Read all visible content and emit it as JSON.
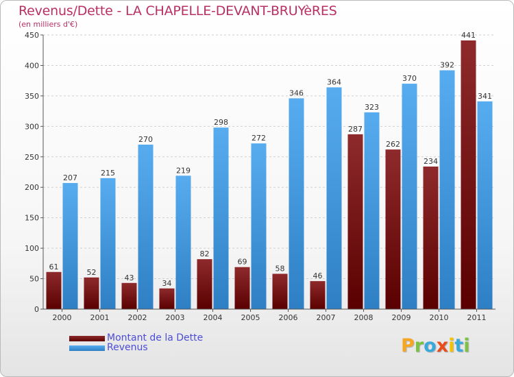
{
  "chart_data": {
    "type": "bar",
    "title": "Revenus/Dette - LA CHAPELLE-DEVANT-BRUYèRES",
    "subtitle": "(en milliers d'€)",
    "categories": [
      "2000",
      "2001",
      "2002",
      "2003",
      "2004",
      "2005",
      "2006",
      "2007",
      "2008",
      "2009",
      "2010",
      "2011"
    ],
    "series": [
      {
        "name": "Montant de la Dette",
        "color": "#7a0f12",
        "values": [
          61,
          52,
          43,
          34,
          82,
          69,
          58,
          46,
          287,
          262,
          234,
          441
        ]
      },
      {
        "name": "Revenus",
        "color": "#3d97dd",
        "values": [
          207,
          215,
          270,
          219,
          298,
          272,
          346,
          364,
          323,
          370,
          392,
          341
        ]
      }
    ],
    "ylim": [
      0,
      450
    ],
    "yticks": [
      0,
      50,
      100,
      150,
      200,
      250,
      300,
      350,
      400,
      450
    ],
    "grid": true,
    "legend": "bottom-left"
  },
  "logo": {
    "letters": [
      "P",
      "r",
      "o",
      "x",
      "i",
      "t",
      "i"
    ],
    "colors": [
      "#f5a623",
      "#7cc242",
      "#39a9dc",
      "#e84e1b",
      "#f5c200",
      "#39a9dc",
      "#7cc242"
    ]
  }
}
